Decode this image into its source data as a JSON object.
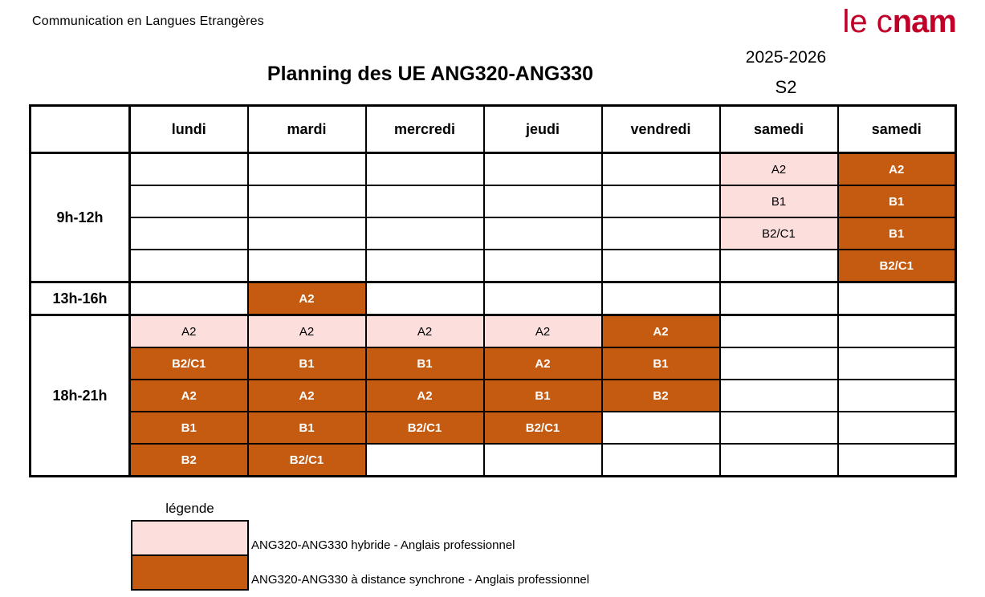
{
  "page": {
    "subject": "Communication en Langues Etrangères",
    "title": "Planning des UE ANG320-ANG330",
    "year": "2025-2026",
    "semester": "S2",
    "logo_light": "le c",
    "logo_bold": "nam"
  },
  "colors": {
    "hybride": "#FCDEDD",
    "distance": "#C55A11",
    "brand": "#C1002A"
  },
  "planning_table": {
    "day_headers": [
      "lundi",
      "mardi",
      "mercredi",
      "jeudi",
      "vendredi",
      "samedi",
      "samedi"
    ],
    "blocks": [
      {
        "time": "9h-12h",
        "rows": [
          [
            null,
            null,
            null,
            null,
            null,
            {
              "text": "A2",
              "style": "hybride"
            },
            {
              "text": "A2",
              "style": "distance"
            }
          ],
          [
            null,
            null,
            null,
            null,
            null,
            {
              "text": "B1",
              "style": "hybride"
            },
            {
              "text": "B1",
              "style": "distance"
            }
          ],
          [
            null,
            null,
            null,
            null,
            null,
            {
              "text": "B2/C1",
              "style": "hybride"
            },
            {
              "text": "B1",
              "style": "distance"
            }
          ],
          [
            null,
            null,
            null,
            null,
            null,
            null,
            {
              "text": "B2/C1",
              "style": "distance"
            }
          ]
        ]
      },
      {
        "time": "13h-16h",
        "rows": [
          [
            null,
            {
              "text": "A2",
              "style": "distance"
            },
            null,
            null,
            null,
            null,
            null
          ]
        ]
      },
      {
        "time": "18h-21h",
        "rows": [
          [
            {
              "text": "A2",
              "style": "hybride"
            },
            {
              "text": "A2",
              "style": "hybride"
            },
            {
              "text": "A2",
              "style": "hybride"
            },
            {
              "text": "A2",
              "style": "hybride"
            },
            {
              "text": "A2",
              "style": "distance"
            },
            null,
            null
          ],
          [
            {
              "text": "B2/C1",
              "style": "distance"
            },
            {
              "text": "B1",
              "style": "distance"
            },
            {
              "text": "B1",
              "style": "distance"
            },
            {
              "text": "A2",
              "style": "distance"
            },
            {
              "text": "B1",
              "style": "distance"
            },
            null,
            null
          ],
          [
            {
              "text": "A2",
              "style": "distance"
            },
            {
              "text": "A2",
              "style": "distance"
            },
            {
              "text": "A2",
              "style": "distance"
            },
            {
              "text": "B1",
              "style": "distance"
            },
            {
              "text": "B2",
              "style": "distance"
            },
            null,
            null
          ],
          [
            {
              "text": "B1",
              "style": "distance"
            },
            {
              "text": "B1",
              "style": "distance"
            },
            {
              "text": "B2/C1",
              "style": "distance"
            },
            {
              "text": "B2/C1",
              "style": "distance"
            },
            null,
            null,
            null
          ],
          [
            {
              "text": "B2",
              "style": "distance"
            },
            {
              "text": "B2/C1",
              "style": "distance"
            },
            null,
            null,
            null,
            null,
            null
          ]
        ]
      }
    ]
  },
  "legend": {
    "title": "légende",
    "items": [
      {
        "type": "hybride",
        "label": "ANG320-ANG330 hybride - Anglais professionnel"
      },
      {
        "type": "distance",
        "label": "ANG320-ANG330 à distance synchrone - Anglais professionnel"
      }
    ]
  }
}
